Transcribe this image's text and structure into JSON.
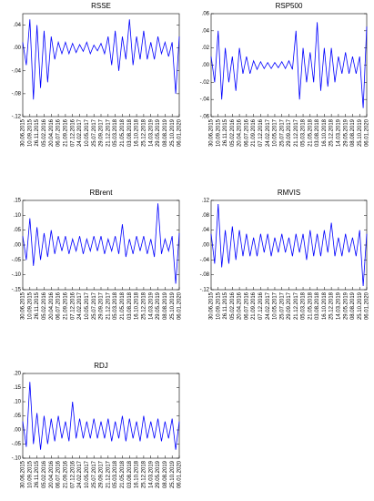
{
  "chart_data": [
    {
      "type": "line",
      "title": "RSSE",
      "color": "#0000ff",
      "xlim": [
        0,
        44
      ],
      "ylim": [
        -0.12,
        0.06
      ],
      "yticks": [
        {
          "value": 0.04,
          "label": ".04"
        },
        {
          "value": 0,
          "label": ".00"
        },
        {
          "value": -0.04,
          "label": "-.04"
        },
        {
          "value": -0.08,
          "label": "-.08"
        },
        {
          "value": -0.12,
          "label": "-.12"
        }
      ],
      "xticks": [
        {
          "value": 0,
          "label": "30.06.2015"
        },
        {
          "value": 2,
          "label": "10.09.2015"
        },
        {
          "value": 4,
          "label": "26.11.2015"
        },
        {
          "value": 6,
          "label": "05.02.2016"
        },
        {
          "value": 8,
          "label": "20.04.2016"
        },
        {
          "value": 10,
          "label": "06.07.2016"
        },
        {
          "value": 12,
          "label": "21.09.2016"
        },
        {
          "value": 14,
          "label": "07.12.2016"
        },
        {
          "value": 16,
          "label": "24.02.2017"
        },
        {
          "value": 18,
          "label": "10.05.2017"
        },
        {
          "value": 20,
          "label": "25.07.2017"
        },
        {
          "value": 22,
          "label": "29.09.2017"
        },
        {
          "value": 24,
          "label": "21.12.2017"
        },
        {
          "value": 26,
          "label": "05.03.2018"
        },
        {
          "value": 28,
          "label": "21.05.2018"
        },
        {
          "value": 30,
          "label": "03.08.2018"
        },
        {
          "value": 32,
          "label": "16.10.2018"
        },
        {
          "value": 34,
          "label": "25.12.2018"
        },
        {
          "value": 36,
          "label": "14.03.2019"
        },
        {
          "value": 38,
          "label": "29.05.2019"
        },
        {
          "value": 40,
          "label": "08.08.2019"
        },
        {
          "value": 42,
          "label": "25.10.2019"
        },
        {
          "value": 44,
          "label": "06.01.2020"
        }
      ],
      "values": [
        0.01,
        -0.03,
        0.05,
        -0.09,
        0.04,
        -0.07,
        0.03,
        -0.06,
        0.02,
        -0.02,
        0.01,
        -0.01,
        0.01,
        -0.01,
        0.008,
        -0.008,
        0.006,
        -0.006,
        0.01,
        -0.01,
        0.005,
        -0.005,
        0.008,
        -0.01,
        0.02,
        -0.03,
        0.03,
        -0.04,
        0.02,
        -0.02,
        0.05,
        -0.03,
        0.02,
        -0.02,
        0.03,
        -0.02,
        0.01,
        -0.02,
        0.02,
        -0.01,
        0.01,
        -0.015,
        0.01,
        -0.08,
        0.02
      ]
    },
    {
      "type": "line",
      "title": "RSP500",
      "color": "#0000ff",
      "xlim": [
        0,
        44
      ],
      "ylim": [
        -0.06,
        0.06
      ],
      "yticks": [
        {
          "value": 0.06,
          "label": ".06"
        },
        {
          "value": 0.04,
          "label": ".04"
        },
        {
          "value": 0.02,
          "label": ".02"
        },
        {
          "value": 0,
          "label": ".00"
        },
        {
          "value": -0.02,
          "label": "-.02"
        },
        {
          "value": -0.04,
          "label": "-.04"
        },
        {
          "value": -0.06,
          "label": "-.06"
        }
      ],
      "xticks": [
        {
          "value": 0,
          "label": "30.06.2015"
        },
        {
          "value": 2,
          "label": "10.09.2015"
        },
        {
          "value": 4,
          "label": "26.11.2015"
        },
        {
          "value": 6,
          "label": "05.02.2016"
        },
        {
          "value": 8,
          "label": "20.04.2016"
        },
        {
          "value": 10,
          "label": "06.07.2016"
        },
        {
          "value": 12,
          "label": "21.09.2016"
        },
        {
          "value": 14,
          "label": "07.12.2016"
        },
        {
          "value": 16,
          "label": "24.02.2017"
        },
        {
          "value": 18,
          "label": "10.05.2017"
        },
        {
          "value": 20,
          "label": "25.07.2017"
        },
        {
          "value": 22,
          "label": "29.09.2017"
        },
        {
          "value": 24,
          "label": "21.12.2017"
        },
        {
          "value": 26,
          "label": "05.03.2018"
        },
        {
          "value": 28,
          "label": "21.05.2018"
        },
        {
          "value": 30,
          "label": "03.08.2018"
        },
        {
          "value": 32,
          "label": "16.10.2018"
        },
        {
          "value": 34,
          "label": "25.12.2018"
        },
        {
          "value": 36,
          "label": "14.03.2019"
        },
        {
          "value": 38,
          "label": "29.05.2019"
        },
        {
          "value": 40,
          "label": "08.08.2019"
        },
        {
          "value": 42,
          "label": "25.10.2019"
        },
        {
          "value": 44,
          "label": "06.01.2020"
        }
      ],
      "values": [
        0.01,
        -0.02,
        0.04,
        -0.04,
        0.02,
        -0.02,
        0.01,
        -0.03,
        0.02,
        -0.01,
        0.01,
        -0.01,
        0.005,
        -0.005,
        0.004,
        -0.004,
        0.003,
        -0.004,
        0.003,
        -0.003,
        0.004,
        -0.004,
        0.005,
        -0.005,
        0.04,
        -0.04,
        0.02,
        -0.02,
        0.015,
        -0.02,
        0.05,
        -0.03,
        0.02,
        -0.025,
        0.02,
        -0.02,
        0.01,
        -0.01,
        0.015,
        -0.01,
        0.01,
        -0.01,
        0.01,
        -0.05,
        0.045
      ]
    },
    {
      "type": "line",
      "title": "RBrent",
      "color": "#0000ff",
      "xlim": [
        0,
        44
      ],
      "ylim": [
        -0.15,
        0.15
      ],
      "yticks": [
        {
          "value": 0.15,
          "label": ".15"
        },
        {
          "value": 0.1,
          "label": ".10"
        },
        {
          "value": 0.05,
          "label": ".05"
        },
        {
          "value": 0,
          "label": ".00"
        },
        {
          "value": -0.05,
          "label": "-.05"
        },
        {
          "value": -0.1,
          "label": "-.10"
        },
        {
          "value": -0.15,
          "label": "-.15"
        }
      ],
      "xticks": [
        {
          "value": 0,
          "label": "30.06.2015"
        },
        {
          "value": 2,
          "label": "10.09.2015"
        },
        {
          "value": 4,
          "label": "26.11.2015"
        },
        {
          "value": 6,
          "label": "05.02.2016"
        },
        {
          "value": 8,
          "label": "20.04.2016"
        },
        {
          "value": 10,
          "label": "06.07.2016"
        },
        {
          "value": 12,
          "label": "21.09.2016"
        },
        {
          "value": 14,
          "label": "07.12.2016"
        },
        {
          "value": 16,
          "label": "24.02.2017"
        },
        {
          "value": 18,
          "label": "10.05.2017"
        },
        {
          "value": 20,
          "label": "25.07.2017"
        },
        {
          "value": 22,
          "label": "29.09.2017"
        },
        {
          "value": 24,
          "label": "21.12.2017"
        },
        {
          "value": 26,
          "label": "05.03.2018"
        },
        {
          "value": 28,
          "label": "21.05.2018"
        },
        {
          "value": 30,
          "label": "03.08.2018"
        },
        {
          "value": 32,
          "label": "16.10.2018"
        },
        {
          "value": 34,
          "label": "25.12.2018"
        },
        {
          "value": 36,
          "label": "14.03.2019"
        },
        {
          "value": 38,
          "label": "29.05.2019"
        },
        {
          "value": 40,
          "label": "08.08.2019"
        },
        {
          "value": 42,
          "label": "25.10.2019"
        },
        {
          "value": 44,
          "label": "06.01.2020"
        }
      ],
      "values": [
        0.03,
        -0.05,
        0.09,
        -0.07,
        0.06,
        -0.05,
        0.04,
        -0.04,
        0.05,
        -0.03,
        0.03,
        -0.02,
        0.03,
        -0.03,
        0.02,
        -0.02,
        0.03,
        -0.03,
        0.02,
        -0.02,
        0.03,
        -0.02,
        0.03,
        -0.03,
        0.02,
        -0.02,
        0.03,
        -0.03,
        0.07,
        -0.04,
        0.02,
        -0.03,
        0.03,
        -0.02,
        0.03,
        -0.03,
        0.02,
        -0.04,
        0.14,
        -0.03,
        0.02,
        -0.02,
        0.03,
        -0.13,
        0.04
      ]
    },
    {
      "type": "line",
      "title": "RMVIS",
      "color": "#0000ff",
      "xlim": [
        0,
        44
      ],
      "ylim": [
        -0.12,
        0.12
      ],
      "yticks": [
        {
          "value": 0.12,
          "label": ".12"
        },
        {
          "value": 0.08,
          "label": ".08"
        },
        {
          "value": 0.04,
          "label": ".04"
        },
        {
          "value": 0,
          "label": ".00"
        },
        {
          "value": -0.04,
          "label": "-.04"
        },
        {
          "value": -0.08,
          "label": "-.08"
        },
        {
          "value": -0.12,
          "label": "-.12"
        }
      ],
      "xticks": [
        {
          "value": 0,
          "label": "30.06.2015"
        },
        {
          "value": 2,
          "label": "10.09.2015"
        },
        {
          "value": 4,
          "label": "26.11.2015"
        },
        {
          "value": 6,
          "label": "05.02.2016"
        },
        {
          "value": 8,
          "label": "20.04.2016"
        },
        {
          "value": 10,
          "label": "06.07.2016"
        },
        {
          "value": 12,
          "label": "21.09.2016"
        },
        {
          "value": 14,
          "label": "07.12.2016"
        },
        {
          "value": 16,
          "label": "24.02.2017"
        },
        {
          "value": 18,
          "label": "10.05.2017"
        },
        {
          "value": 20,
          "label": "25.07.2017"
        },
        {
          "value": 22,
          "label": "29.09.2017"
        },
        {
          "value": 24,
          "label": "21.12.2017"
        },
        {
          "value": 26,
          "label": "05.03.2018"
        },
        {
          "value": 28,
          "label": "21.05.2018"
        },
        {
          "value": 30,
          "label": "03.08.2018"
        },
        {
          "value": 32,
          "label": "16.10.2018"
        },
        {
          "value": 34,
          "label": "25.12.2018"
        },
        {
          "value": 36,
          "label": "14.03.2019"
        },
        {
          "value": 38,
          "label": "29.05.2019"
        },
        {
          "value": 40,
          "label": "08.08.2019"
        },
        {
          "value": 42,
          "label": "25.10.2019"
        },
        {
          "value": 44,
          "label": "06.01.2020"
        }
      ],
      "values": [
        0.03,
        -0.05,
        0.11,
        -0.06,
        0.04,
        -0.05,
        0.05,
        -0.04,
        0.04,
        -0.03,
        0.03,
        -0.03,
        0.02,
        -0.03,
        0.03,
        -0.02,
        0.03,
        -0.03,
        0.02,
        -0.02,
        0.03,
        -0.02,
        0.02,
        -0.03,
        0.03,
        -0.02,
        0.03,
        -0.04,
        0.04,
        -0.03,
        0.03,
        -0.03,
        0.04,
        -0.02,
        0.06,
        -0.03,
        0.02,
        -0.03,
        0.03,
        -0.02,
        0.02,
        -0.03,
        0.04,
        -0.11,
        0.03
      ]
    },
    {
      "type": "line",
      "title": "RDJ",
      "color": "#0000ff",
      "xlim": [
        0,
        44
      ],
      "ylim": [
        -0.1,
        0.2
      ],
      "yticks": [
        {
          "value": 0.2,
          "label": ".20"
        },
        {
          "value": 0.15,
          "label": ".15"
        },
        {
          "value": 0.1,
          "label": ".10"
        },
        {
          "value": 0.05,
          "label": ".05"
        },
        {
          "value": 0,
          "label": ".00"
        },
        {
          "value": -0.05,
          "label": "-.05"
        },
        {
          "value": -0.1,
          "label": "-.10"
        }
      ],
      "xticks": [
        {
          "value": 0,
          "label": "30.06.2015"
        },
        {
          "value": 2,
          "label": "10.09.2015"
        },
        {
          "value": 4,
          "label": "26.11.2015"
        },
        {
          "value": 6,
          "label": "05.02.2016"
        },
        {
          "value": 8,
          "label": "20.04.2016"
        },
        {
          "value": 10,
          "label": "06.07.2016"
        },
        {
          "value": 12,
          "label": "21.09.2016"
        },
        {
          "value": 14,
          "label": "07.12.2016"
        },
        {
          "value": 16,
          "label": "24.02.2017"
        },
        {
          "value": 18,
          "label": "10.05.2017"
        },
        {
          "value": 20,
          "label": "25.07.2017"
        },
        {
          "value": 22,
          "label": "29.09.2017"
        },
        {
          "value": 24,
          "label": "21.12.2017"
        },
        {
          "value": 26,
          "label": "05.03.2018"
        },
        {
          "value": 28,
          "label": "21.05.2018"
        },
        {
          "value": 30,
          "label": "03.08.2018"
        },
        {
          "value": 32,
          "label": "16.10.2018"
        },
        {
          "value": 34,
          "label": "25.12.2018"
        },
        {
          "value": 36,
          "label": "14.03.2019"
        },
        {
          "value": 38,
          "label": "29.05.2019"
        },
        {
          "value": 40,
          "label": "08.08.2019"
        },
        {
          "value": 42,
          "label": "25.10.2019"
        },
        {
          "value": 44,
          "label": "06.01.2020"
        }
      ],
      "values": [
        0.03,
        -0.06,
        0.17,
        -0.05,
        0.06,
        -0.07,
        0.05,
        -0.05,
        0.04,
        -0.04,
        0.05,
        -0.03,
        0.03,
        -0.04,
        0.1,
        -0.03,
        0.04,
        -0.03,
        0.03,
        -0.03,
        0.04,
        -0.03,
        0.03,
        -0.03,
        0.04,
        -0.04,
        0.03,
        -0.03,
        0.05,
        -0.04,
        0.04,
        -0.03,
        0.03,
        -0.04,
        0.05,
        -0.03,
        0.03,
        -0.03,
        0.04,
        -0.04,
        0.03,
        -0.03,
        0.04,
        -0.07,
        0.03
      ]
    }
  ]
}
